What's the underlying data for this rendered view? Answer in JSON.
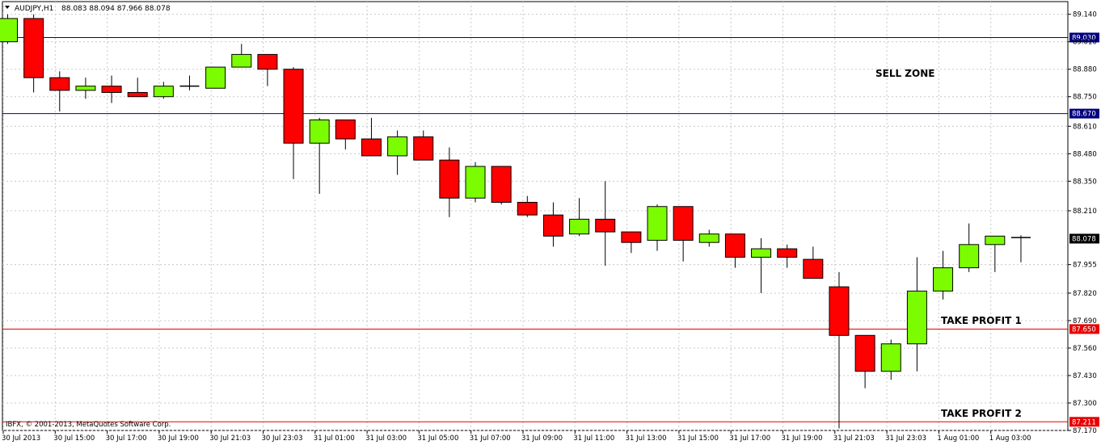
{
  "header": {
    "symbol_label": "AUDJPY,H1",
    "ohlc_readout": "88.083 88.094 87.966 88.078"
  },
  "copyright": "IBFX, © 2001-2013, MetaQuotes Software Corp.",
  "colors": {
    "bull": "#7cfc00",
    "bear": "#ff0000",
    "resistance": "#000080",
    "target": "#e80000",
    "grid": "#c8c8c8",
    "price_badge": "#000000"
  },
  "chart_data": {
    "type": "candlestick",
    "symbol": "AUDJPY",
    "timeframe": "H1",
    "ylim": [
      87.17,
      89.2
    ],
    "y_ticks": [
      "89.140",
      "89.010",
      "88.880",
      "88.750",
      "88.610",
      "88.480",
      "88.350",
      "88.210",
      "87.955",
      "87.820",
      "87.690",
      "87.560",
      "87.430",
      "87.300",
      "87.170"
    ],
    "x_ticks": [
      "30 Jul 2013",
      "30 Jul 15:00",
      "30 Jul 17:00",
      "30 Jul 19:00",
      "30 Jul 21:03",
      "30 Jul 23:03",
      "31 Jul 01:00",
      "31 Jul 03:00",
      "31 Jul 05:00",
      "31 Jul 07:00",
      "31 Jul 09:00",
      "31 Jul 11:00",
      "31 Jul 13:00",
      "31 Jul 15:00",
      "31 Jul 17:00",
      "31 Jul 19:00",
      "31 Jul 21:03",
      "31 Jul 23:03",
      "1 Aug 01:00",
      "1 Aug 03:00"
    ],
    "grid": true,
    "candles": [
      {
        "o": 89.01,
        "h": 89.14,
        "l": 89.0,
        "c": 89.12
      },
      {
        "o": 89.12,
        "h": 89.14,
        "l": 88.77,
        "c": 88.84
      },
      {
        "o": 88.84,
        "h": 88.87,
        "l": 88.68,
        "c": 88.78
      },
      {
        "o": 88.78,
        "h": 88.84,
        "l": 88.74,
        "c": 88.8
      },
      {
        "o": 88.8,
        "h": 88.85,
        "l": 88.72,
        "c": 88.77
      },
      {
        "o": 88.77,
        "h": 88.84,
        "l": 88.75,
        "c": 88.75
      },
      {
        "o": 88.75,
        "h": 88.82,
        "l": 88.74,
        "c": 88.8
      },
      {
        "o": 88.8,
        "h": 88.85,
        "l": 88.78,
        "c": 88.8
      },
      {
        "o": 88.79,
        "h": 88.89,
        "l": 88.79,
        "c": 88.89
      },
      {
        "o": 88.89,
        "h": 89.0,
        "l": 88.89,
        "c": 88.95
      },
      {
        "o": 88.95,
        "h": 88.95,
        "l": 88.8,
        "c": 88.88
      },
      {
        "o": 88.88,
        "h": 88.89,
        "l": 88.36,
        "c": 88.53
      },
      {
        "o": 88.53,
        "h": 88.65,
        "l": 88.29,
        "c": 88.64
      },
      {
        "o": 88.64,
        "h": 88.64,
        "l": 88.5,
        "c": 88.55
      },
      {
        "o": 88.55,
        "h": 88.65,
        "l": 88.47,
        "c": 88.47
      },
      {
        "o": 88.47,
        "h": 88.59,
        "l": 88.38,
        "c": 88.56
      },
      {
        "o": 88.56,
        "h": 88.59,
        "l": 88.45,
        "c": 88.45
      },
      {
        "o": 88.45,
        "h": 88.51,
        "l": 88.18,
        "c": 88.27
      },
      {
        "o": 88.27,
        "h": 88.44,
        "l": 88.25,
        "c": 88.42
      },
      {
        "o": 88.42,
        "h": 88.42,
        "l": 88.24,
        "c": 88.25
      },
      {
        "o": 88.25,
        "h": 88.28,
        "l": 88.18,
        "c": 88.19
      },
      {
        "o": 88.19,
        "h": 88.25,
        "l": 88.04,
        "c": 88.09
      },
      {
        "o": 88.1,
        "h": 88.27,
        "l": 88.09,
        "c": 88.17
      },
      {
        "o": 88.17,
        "h": 88.35,
        "l": 87.95,
        "c": 88.11
      },
      {
        "o": 88.11,
        "h": 88.11,
        "l": 88.01,
        "c": 88.06
      },
      {
        "o": 88.07,
        "h": 88.24,
        "l": 88.02,
        "c": 88.23
      },
      {
        "o": 88.23,
        "h": 88.23,
        "l": 87.97,
        "c": 88.07
      },
      {
        "o": 88.06,
        "h": 88.12,
        "l": 88.04,
        "c": 88.1
      },
      {
        "o": 88.1,
        "h": 88.1,
        "l": 87.94,
        "c": 87.99
      },
      {
        "o": 87.99,
        "h": 88.08,
        "l": 87.82,
        "c": 88.03
      },
      {
        "o": 88.03,
        "h": 88.05,
        "l": 87.94,
        "c": 87.99
      },
      {
        "o": 87.98,
        "h": 88.04,
        "l": 87.89,
        "c": 87.89
      },
      {
        "o": 87.85,
        "h": 87.92,
        "l": 87.18,
        "c": 87.62
      },
      {
        "o": 87.62,
        "h": 87.62,
        "l": 87.37,
        "c": 87.45
      },
      {
        "o": 87.45,
        "h": 87.6,
        "l": 87.41,
        "c": 87.58
      },
      {
        "o": 87.58,
        "h": 87.99,
        "l": 87.45,
        "c": 87.83
      },
      {
        "o": 87.83,
        "h": 88.02,
        "l": 87.79,
        "c": 87.94
      },
      {
        "o": 87.94,
        "h": 88.15,
        "l": 87.92,
        "c": 88.05
      },
      {
        "o": 88.05,
        "h": 88.09,
        "l": 87.92,
        "c": 88.09
      },
      {
        "o": 88.083,
        "h": 88.094,
        "l": 87.966,
        "c": 88.078
      }
    ],
    "levels": [
      {
        "value": 89.03,
        "label": "89.030",
        "role": "resistance"
      },
      {
        "value": 88.67,
        "label": "88.670",
        "role": "resistance"
      },
      {
        "value": 87.65,
        "label": "87.650",
        "role": "target"
      },
      {
        "value": 87.211,
        "label": "87.211",
        "role": "target"
      }
    ],
    "current_price": {
      "value": 88.078,
      "label": "88.078"
    },
    "annotations": [
      {
        "text": "SELL ZONE",
        "price": 88.86
      },
      {
        "text": "TAKE PROFIT 1",
        "price": 87.69
      },
      {
        "text": "TAKE PROFIT 2",
        "price": 87.25
      }
    ]
  }
}
